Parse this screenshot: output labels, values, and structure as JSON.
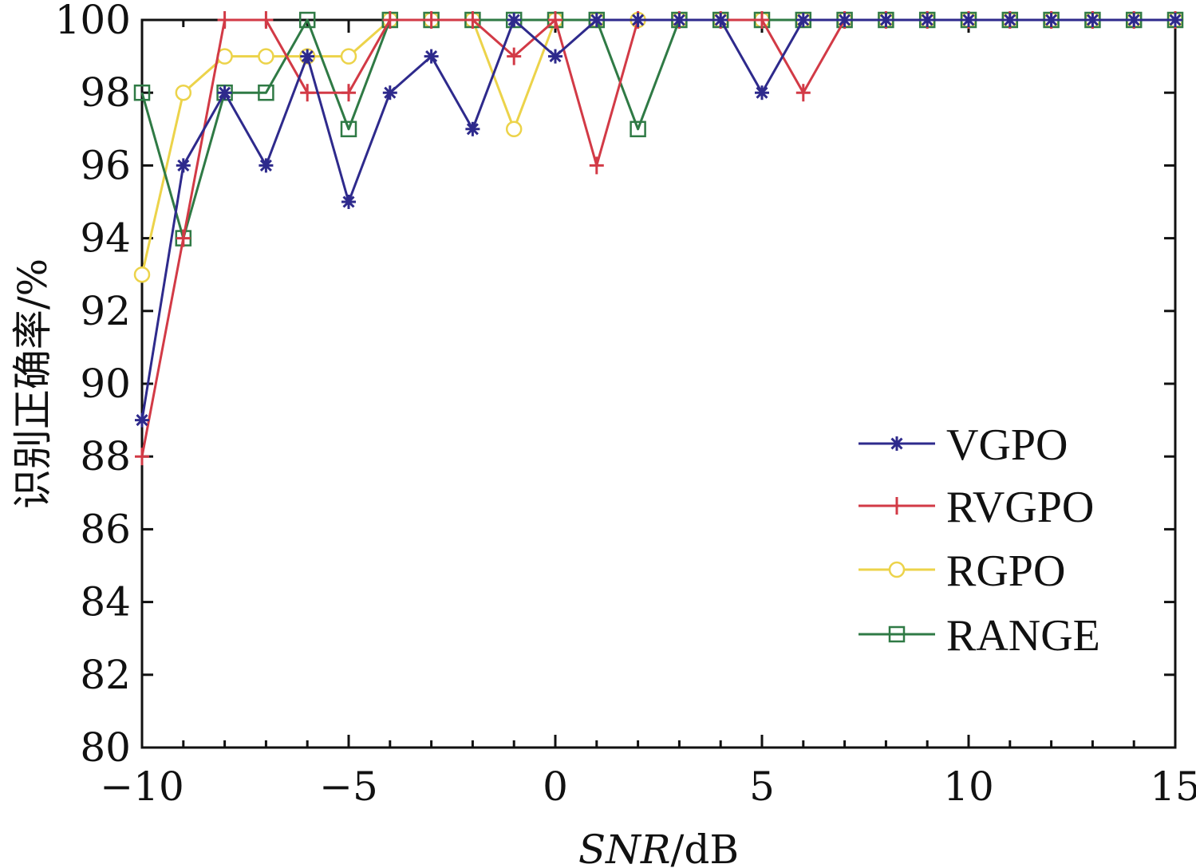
{
  "chart_data": {
    "type": "line",
    "title": "",
    "xlabel_italic": "SNR",
    "xlabel_unit": "/dB",
    "ylabel": "识别正确率/%",
    "xlim": [
      -10,
      15
    ],
    "ylim": [
      80,
      100
    ],
    "x_ticks": [
      -10,
      -5,
      0,
      5,
      10,
      15
    ],
    "x_tick_labels": [
      "−10",
      "−5",
      "0",
      "5",
      "10",
      "15"
    ],
    "y_ticks": [
      80,
      82,
      84,
      86,
      88,
      90,
      92,
      94,
      96,
      98,
      100
    ],
    "y_tick_labels": [
      "80",
      "82",
      "84",
      "86",
      "88",
      "90",
      "92",
      "94",
      "96",
      "98",
      "100"
    ],
    "grid": false,
    "legend_position": "right",
    "x": [
      -10,
      -9,
      -8,
      -7,
      -6,
      -5,
      -4,
      -3,
      -2,
      -1,
      0,
      1,
      2,
      3,
      4,
      5,
      6,
      7,
      8,
      9,
      10,
      11,
      12,
      13,
      14,
      15
    ],
    "series": [
      {
        "name": "VGPO",
        "color": "#2e2a8c",
        "marker": "asterisk",
        "values": [
          89,
          96,
          98,
          96,
          99,
          95,
          98,
          99,
          97,
          100,
          99,
          100,
          100,
          100,
          100,
          98,
          100,
          100,
          100,
          100,
          100,
          100,
          100,
          100,
          100,
          100
        ]
      },
      {
        "name": "RVGPO",
        "color": "#d23a46",
        "marker": "plus",
        "values": [
          88,
          94,
          100,
          100,
          98,
          98,
          100,
          100,
          100,
          99,
          100,
          96,
          100,
          100,
          100,
          100,
          98,
          100,
          100,
          100,
          100,
          100,
          100,
          100,
          100,
          100
        ]
      },
      {
        "name": "RGPO",
        "color": "#ecd34a",
        "marker": "circle",
        "values": [
          93,
          98,
          99,
          99,
          99,
          99,
          100,
          100,
          100,
          97,
          100,
          100,
          100,
          100,
          100,
          100,
          100,
          100,
          100,
          100,
          100,
          100,
          100,
          100,
          100,
          100
        ]
      },
      {
        "name": "RANGE",
        "color": "#2f7a45",
        "marker": "square",
        "values": [
          98,
          94,
          98,
          98,
          100,
          97,
          100,
          100,
          100,
          100,
          100,
          100,
          97,
          100,
          100,
          100,
          100,
          100,
          100,
          100,
          100,
          100,
          100,
          100,
          100,
          100
        ]
      }
    ]
  }
}
